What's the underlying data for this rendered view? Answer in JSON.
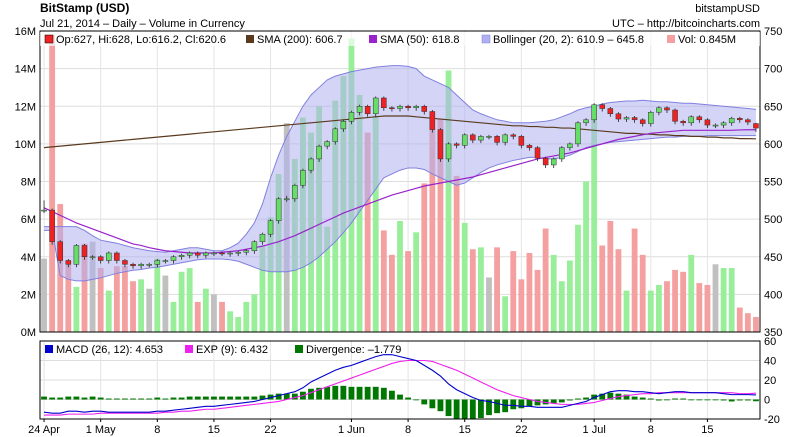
{
  "chart_data": {
    "type": "candlestick",
    "title": "BitStamp (USD)",
    "subtitle": "Jul 21, 2014 – Daily – Volume in Currency",
    "exchange": "bitstampUSD",
    "source": "UTC – http://bitcoincharts.com",
    "price_axis": {
      "min": 350,
      "max": 750,
      "ticks": [
        "750",
        "700",
        "650",
        "600",
        "550",
        "500",
        "450",
        "400",
        "350"
      ]
    },
    "volume_axis": {
      "min": 0,
      "max": 16,
      "unit": "M",
      "ticks": [
        "16M",
        "14M",
        "12M",
        "10M",
        "8M",
        "6M",
        "4M",
        "2M",
        "0M"
      ]
    },
    "macd_axis": {
      "min": -20,
      "max": 60,
      "ticks": [
        "60",
        "40",
        "20",
        "0",
        "-20"
      ]
    },
    "x_ticks": [
      {
        "day": 0,
        "label": "24 Apr"
      },
      {
        "day": 7,
        "label": "1 May"
      },
      {
        "day": 14,
        "label": "8"
      },
      {
        "day": 21,
        "label": "15"
      },
      {
        "day": 28,
        "label": "22"
      },
      {
        "day": 38,
        "label": "1 Jun"
      },
      {
        "day": 45,
        "label": "8"
      },
      {
        "day": 52,
        "label": "15"
      },
      {
        "day": 59,
        "label": "22"
      },
      {
        "day": 68,
        "label": "1 Jul"
      },
      {
        "day": 75,
        "label": "8"
      },
      {
        "day": 82,
        "label": "15"
      }
    ],
    "legend": {
      "ohlc": "Op:627, Hi:628, Lo:616.2, Cl:620.6",
      "sma200": "SMA (200): 606.7",
      "sma50": "SMA (50): 618.8",
      "bollinger": "Bollinger (20, 2): 610.9 – 645.8",
      "volume": "Vol: 0.845M"
    },
    "macd_legend": {
      "macd": "MACD (26, 12): 4.653",
      "exp": "EXP (9): 6.432",
      "divergence": "Divergence: –1.779"
    },
    "closes": [
      512,
      470,
      445,
      440,
      465,
      450,
      450,
      445,
      455,
      445,
      440,
      438,
      440,
      440,
      445,
      445,
      450,
      452,
      455,
      452,
      455,
      455,
      454,
      455,
      456,
      458,
      470,
      480,
      498,
      527,
      527,
      545,
      565,
      580,
      597,
      603,
      620,
      630,
      642,
      650,
      640,
      661,
      648,
      647,
      650,
      648,
      650,
      643,
      619,
      580,
      600,
      598,
      612,
      605,
      610,
      610,
      602,
      612,
      610,
      598,
      595,
      581,
      572,
      580,
      595,
      600,
      628,
      632,
      652,
      647,
      640,
      633,
      635,
      632,
      627,
      642,
      648,
      645,
      630,
      628,
      636,
      632,
      625,
      625,
      628,
      634,
      632,
      629,
      621
    ],
    "opens": [
      512,
      512,
      470,
      445,
      440,
      465,
      450,
      450,
      445,
      455,
      445,
      440,
      438,
      440,
      440,
      445,
      445,
      450,
      452,
      455,
      452,
      455,
      455,
      454,
      455,
      456,
      458,
      470,
      480,
      498,
      527,
      527,
      545,
      565,
      580,
      597,
      603,
      620,
      630,
      642,
      650,
      640,
      661,
      648,
      647,
      650,
      648,
      650,
      643,
      619,
      580,
      600,
      598,
      612,
      605,
      610,
      610,
      602,
      612,
      610,
      598,
      595,
      581,
      572,
      580,
      595,
      600,
      628,
      632,
      652,
      647,
      640,
      633,
      635,
      632,
      627,
      642,
      648,
      645,
      630,
      628,
      636,
      632,
      625,
      625,
      628,
      634,
      632,
      627
    ],
    "highs": [
      525,
      514,
      472,
      447,
      467,
      467,
      452,
      452,
      457,
      457,
      447,
      442,
      442,
      442,
      447,
      447,
      452,
      454,
      457,
      457,
      457,
      457,
      457,
      457,
      458,
      460,
      472,
      482,
      500,
      529,
      531,
      547,
      567,
      582,
      599,
      605,
      622,
      632,
      644,
      652,
      652,
      663,
      663,
      650,
      652,
      652,
      652,
      652,
      645,
      621,
      602,
      602,
      614,
      614,
      612,
      612,
      612,
      614,
      614,
      612,
      600,
      597,
      583,
      582,
      597,
      602,
      630,
      634,
      654,
      654,
      649,
      642,
      637,
      637,
      634,
      644,
      650,
      650,
      647,
      632,
      638,
      638,
      634,
      627,
      630,
      636,
      636,
      634,
      628
    ],
    "lows": [
      508,
      466,
      441,
      436,
      436,
      446,
      446,
      441,
      441,
      441,
      436,
      434,
      434,
      436,
      436,
      441,
      441,
      446,
      448,
      448,
      448,
      451,
      451,
      450,
      451,
      452,
      454,
      466,
      476,
      494,
      523,
      523,
      541,
      561,
      576,
      593,
      599,
      616,
      626,
      638,
      636,
      636,
      644,
      643,
      643,
      644,
      644,
      639,
      615,
      576,
      576,
      594,
      594,
      601,
      601,
      606,
      598,
      598,
      606,
      594,
      591,
      577,
      568,
      568,
      576,
      591,
      596,
      624,
      628,
      643,
      636,
      629,
      629,
      628,
      623,
      623,
      638,
      641,
      626,
      624,
      624,
      628,
      621,
      621,
      621,
      624,
      628,
      625,
      616
    ],
    "volumes": [
      3.9,
      15.8,
      6.8,
      3.8,
      2.4,
      4.7,
      4.8,
      3.4,
      2.2,
      3.5,
      3.5,
      2.7,
      2.8,
      2.3,
      3.9,
      3.0,
      1.6,
      3.2,
      3.4,
      1.6,
      2.3,
      2.0,
      1.6,
      1.1,
      0.8,
      1.6,
      2.0,
      4.6,
      6.1,
      8.4,
      11.1,
      9.2,
      11.4,
      10.6,
      12.0,
      5.6,
      12.3,
      13.6,
      15.6,
      12.6,
      10.6,
      11.5,
      5.4,
      4.1,
      5.9,
      4.3,
      5.3,
      7.9,
      10.9,
      11.3,
      13.9,
      8.3,
      5.8,
      4.4,
      4.5,
      2.9,
      4.5,
      1.9,
      4.3,
      2.8,
      4.2,
      3.3,
      5.5,
      4.1,
      2.7,
      3.8,
      5.7,
      8.0,
      11.3,
      4.6,
      5.9,
      4.4,
      2.2,
      5.5,
      4.1,
      2.2,
      2.5,
      2.7,
      3.3,
      3.2,
      4.1,
      2.6,
      2.5,
      3.6,
      3.4,
      3.4,
      1.3,
      1.0,
      0.8
    ],
    "macd_values": [
      -13,
      -14,
      -14,
      -12,
      -12,
      -13,
      -12,
      -12,
      -13,
      -13,
      -13,
      -13,
      -13,
      -13,
      -12,
      -12,
      -11,
      -10,
      -9,
      -8,
      -7,
      -7,
      -6,
      -5,
      -4,
      -3,
      -2,
      0,
      2,
      4,
      6,
      8,
      12,
      18,
      22,
      26,
      30,
      33,
      35,
      38,
      41,
      44,
      46,
      46,
      44,
      42,
      40,
      35,
      30,
      24,
      16,
      10,
      6,
      2,
      -1,
      -2,
      -4,
      -6,
      -6,
      -7,
      -7,
      -8,
      -8,
      -8,
      -8,
      -6,
      -4,
      -2,
      2,
      5,
      8,
      9,
      9,
      8,
      8,
      7,
      6,
      7,
      8,
      8,
      7,
      7,
      7,
      7,
      6,
      5,
      5,
      5,
      4.65
    ],
    "exp_values": [
      -16,
      -16,
      -16,
      -15,
      -15,
      -15,
      -15,
      -14,
      -14,
      -14,
      -14,
      -14,
      -14,
      -14,
      -14,
      -13,
      -13,
      -12,
      -12,
      -11,
      -10,
      -10,
      -9,
      -8,
      -7,
      -6,
      -5,
      -4,
      -3,
      -2,
      0,
      2,
      4,
      7,
      10,
      13,
      16,
      19,
      22,
      25,
      28,
      31,
      34,
      37,
      39,
      40,
      40,
      40,
      39,
      36,
      33,
      30,
      26,
      22,
      18,
      14,
      10,
      7,
      4,
      2,
      0,
      -2,
      -3,
      -4,
      -5,
      -5,
      -5,
      -4,
      -3,
      -1,
      1,
      3,
      4,
      5,
      6,
      6,
      7,
      7,
      7,
      7,
      7,
      7,
      7,
      7,
      7,
      7,
      6,
      6,
      6.43
    ],
    "divergence_values": [
      3,
      2,
      2,
      3,
      3,
      2,
      3,
      2,
      1,
      1,
      1,
      1,
      1,
      1,
      2,
      1,
      2,
      2,
      3,
      3,
      3,
      3,
      3,
      3,
      3,
      3,
      3,
      4,
      5,
      6,
      6,
      6,
      8,
      11,
      12,
      13,
      14,
      14,
      13,
      13,
      13,
      13,
      12,
      9,
      5,
      2,
      0,
      -5,
      -9,
      -12,
      -17,
      -20,
      -20,
      -20,
      -19,
      -16,
      -14,
      -13,
      -10,
      -9,
      -7,
      -6,
      -5,
      -4,
      -3,
      -1,
      1,
      2,
      5,
      6,
      7,
      6,
      5,
      3,
      2,
      1,
      -1,
      0,
      1,
      1,
      0,
      0,
      0,
      0,
      -1,
      -2,
      -1,
      -1,
      -1.78
    ],
    "sma200_values": [
      595,
      596,
      597,
      598,
      599,
      600,
      601,
      602,
      603,
      604,
      605,
      606,
      607,
      608,
      609,
      610,
      611,
      612,
      613,
      614,
      615,
      616,
      617,
      618,
      619,
      620,
      621,
      622,
      623,
      624,
      625,
      626,
      627,
      628,
      629,
      630,
      631,
      632,
      633,
      634,
      635,
      636,
      637,
      637,
      637,
      637,
      636,
      635,
      634,
      633,
      632,
      631,
      630,
      629,
      628,
      627,
      626,
      625,
      624,
      624,
      623,
      623,
      622,
      622,
      621,
      621,
      620,
      619,
      618,
      617,
      616,
      615,
      614,
      614,
      613,
      613,
      612,
      612,
      611,
      611,
      610,
      610,
      609,
      609,
      608,
      608,
      607,
      607,
      606.7
    ],
    "sma50_values": [
      515,
      510,
      505,
      500,
      495,
      491,
      487,
      483,
      479,
      475,
      471,
      467,
      465,
      462,
      460,
      458,
      457,
      456,
      455,
      455,
      455,
      455,
      456,
      457,
      458,
      460,
      462,
      464,
      467,
      470,
      474,
      478,
      483,
      488,
      493,
      498,
      503,
      508,
      512,
      516,
      520,
      524,
      528,
      532,
      535,
      538,
      541,
      544,
      546,
      548,
      550,
      552,
      554,
      556,
      559,
      562,
      565,
      568,
      571,
      574,
      577,
      580,
      582,
      584,
      586,
      588,
      591,
      594,
      597,
      600,
      603,
      606,
      608,
      610,
      612,
      614,
      615,
      616,
      617,
      618,
      618,
      618,
      618,
      618,
      618,
      618,
      618.5,
      618.8,
      618.8
    ],
    "boll_upper_values": [
      490,
      490,
      490,
      490,
      490,
      485,
      478,
      472,
      470,
      468,
      465,
      462,
      460,
      458,
      457,
      456,
      458,
      460,
      462,
      462,
      460,
      458,
      458,
      462,
      468,
      480,
      495,
      520,
      555,
      585,
      610,
      630,
      650,
      665,
      675,
      685,
      690,
      693,
      696,
      698,
      700,
      702,
      703,
      704,
      704,
      703,
      700,
      690,
      685,
      680,
      675,
      665,
      655,
      645,
      640,
      636,
      632,
      630,
      628,
      628,
      628,
      629,
      630,
      632,
      636,
      640,
      645,
      648,
      650,
      653,
      655,
      656,
      657,
      657,
      658,
      657,
      656,
      656,
      655,
      654,
      654,
      653,
      652,
      651,
      650,
      649,
      648,
      647,
      645.8
    ],
    "boll_lower_values": [
      485,
      485,
      425,
      420,
      418,
      418,
      420,
      422,
      425,
      428,
      430,
      432,
      433,
      435,
      436,
      438,
      440,
      442,
      444,
      446,
      447,
      447,
      447,
      446,
      444,
      440,
      436,
      432,
      430,
      430,
      430,
      432,
      436,
      442,
      450,
      460,
      470,
      482,
      495,
      510,
      525,
      540,
      555,
      560,
      565,
      568,
      568,
      566,
      560,
      555,
      550,
      545,
      548,
      555,
      562,
      568,
      572,
      575,
      578,
      580,
      582,
      582,
      580,
      580,
      582,
      585,
      590,
      595,
      598,
      600,
      602,
      603,
      604,
      605,
      606,
      607,
      608,
      609,
      609,
      610,
      610,
      610,
      611,
      611,
      611,
      611,
      611,
      611,
      610.9
    ]
  },
  "colors": {
    "up": "#66dd66",
    "down": "#ee2222",
    "up_vol": "#99ee99",
    "down_vol": "#f4a0a0",
    "neutral_vol": "#c0c0c0",
    "boll_fill": "#b0b0f0",
    "boll_line": "#8080e0",
    "sma200": "#5a3a1e",
    "sma50": "#9922cc",
    "macd": "#0000cc",
    "exp": "#ee22ee",
    "divergence": "#007700"
  }
}
